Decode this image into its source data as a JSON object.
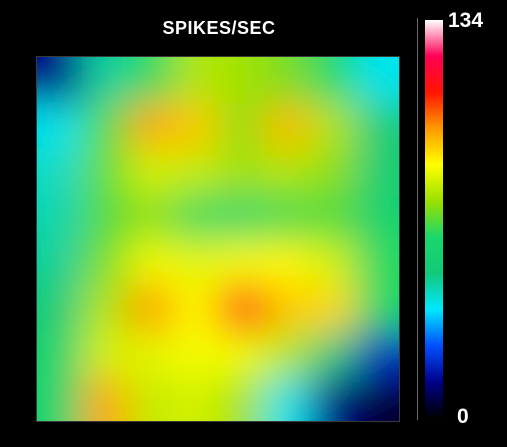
{
  "chart_data": {
    "type": "heatmap",
    "title": "SPIKES/SEC",
    "colorbar": {
      "min": 0,
      "max": 134,
      "min_label": "0",
      "max_label": "134"
    },
    "colormap": [
      "#000000",
      "#00008a",
      "#0050ff",
      "#00e8ff",
      "#12c97a",
      "#1ad86a",
      "#9be000",
      "#ffff00",
      "#ff9a00",
      "#ff1500",
      "#ff0055",
      "#ffffff"
    ],
    "grid": false,
    "legend": "right",
    "rows": 8,
    "cols": 8,
    "values": [
      [
        12,
        45,
        62,
        76,
        74,
        70,
        60,
        38
      ],
      [
        38,
        66,
        96,
        92,
        72,
        94,
        76,
        50
      ],
      [
        42,
        68,
        80,
        78,
        74,
        76,
        72,
        52
      ],
      [
        44,
        66,
        72,
        62,
        60,
        64,
        66,
        56
      ],
      [
        46,
        70,
        84,
        82,
        84,
        86,
        80,
        62
      ],
      [
        50,
        76,
        98,
        86,
        112,
        92,
        90,
        60
      ],
      [
        56,
        80,
        82,
        84,
        84,
        76,
        48,
        18
      ],
      [
        58,
        96,
        78,
        80,
        74,
        38,
        12,
        4
      ]
    ]
  }
}
